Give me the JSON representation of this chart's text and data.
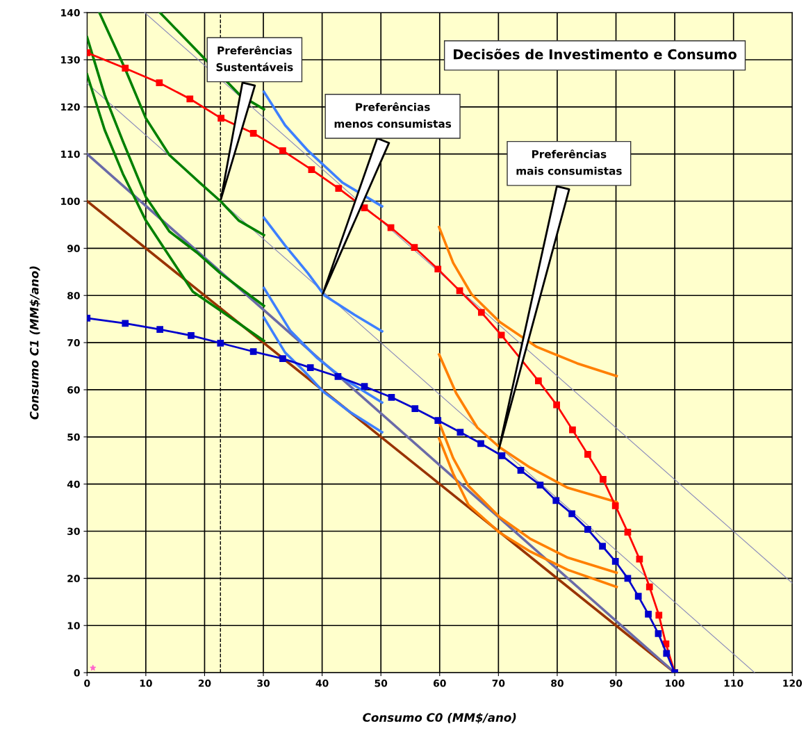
{
  "chart_data": {
    "type": "line",
    "title": "Decisões de Investimento e Consumo",
    "xlabel": "Consumo C0 (MM$/ano)",
    "ylabel": "Consumo C1 (MM$/ano)",
    "xlim": [
      0,
      120
    ],
    "ylim": [
      0,
      140
    ],
    "xticks": [
      0,
      10,
      20,
      30,
      40,
      50,
      60,
      70,
      80,
      90,
      100,
      110,
      120
    ],
    "yticks": [
      0,
      10,
      20,
      30,
      40,
      50,
      60,
      70,
      80,
      90,
      100,
      110,
      120,
      130,
      140
    ],
    "grid": true,
    "line_style": "solid",
    "marker": "none",
    "ref_lines": [
      {
        "axis": "x",
        "value": 22.7,
        "color": "#000000",
        "line_style": "dashed"
      }
    ],
    "annotations": [
      {
        "text": "Preferências\nSustentáveis",
        "x": 22.7,
        "y": 100
      },
      {
        "text": "Preferências\nmenos consumistas",
        "x": 40,
        "y": 80
      },
      {
        "text": "Preferências\nmais consumistas",
        "x": 70,
        "y": 47
      }
    ],
    "series": [
      {
        "color": "#993300",
        "x": [
          0,
          100
        ],
        "values": [
          100,
          0
        ]
      },
      {
        "color": "#6a6aa8",
        "x": [
          0,
          100
        ],
        "values": [
          110,
          0
        ]
      },
      {
        "color": "#8888bb",
        "x": [
          0,
          113.6
        ],
        "values": [
          125,
          0
        ]
      },
      {
        "color": "#8888bb",
        "x": [
          9.8,
          120
        ],
        "values": [
          140,
          19
        ]
      },
      {
        "color": "#008000",
        "x": [
          2.1,
          6.5,
          10,
          14,
          19.2,
          22.7,
          25.8,
          30.1
        ],
        "values": [
          140,
          128,
          117.6,
          109.8,
          103.9,
          100,
          95.9,
          92.8
        ]
      },
      {
        "color": "#008000",
        "x": [
          12.4,
          26,
          30.1
        ],
        "values": [
          140,
          122.5,
          119.5
        ]
      },
      {
        "color": "#008000",
        "x": [
          0,
          3,
          6.1,
          10,
          14,
          18.7,
          22.7,
          30.1
        ],
        "values": [
          134.8,
          122.5,
          112.7,
          100.9,
          93.6,
          89.1,
          84.7,
          77.8
        ]
      },
      {
        "color": "#008000",
        "x": [
          0,
          3,
          6.1,
          10,
          12.8,
          18,
          22.7,
          30.1
        ],
        "values": [
          126.9,
          115.1,
          105.8,
          95.9,
          90.6,
          80.8,
          76.8,
          70.4
        ]
      },
      {
        "color": "#3d7fff",
        "x": [
          30.1,
          33.7,
          37.6,
          43.5,
          50.2
        ],
        "values": [
          123.2,
          116.1,
          110.7,
          103.9,
          98.9
        ]
      },
      {
        "color": "#3d7fff",
        "x": [
          30.1,
          33.7,
          37.6,
          40.4,
          45.5,
          50.2
        ],
        "values": [
          96.5,
          90.6,
          84.7,
          80,
          75.9,
          72.4
        ]
      },
      {
        "color": "#3d7fff",
        "x": [
          30.1,
          34.6,
          39.1,
          43.7,
          50.2
        ],
        "values": [
          81.6,
          72.5,
          66.8,
          62.3,
          57.3
        ]
      },
      {
        "color": "#3d7fff",
        "x": [
          30.1,
          33.7,
          36.9,
          40.1,
          44.6,
          50.2
        ],
        "values": [
          75.3,
          67.9,
          64,
          59.7,
          55.4,
          51
        ]
      },
      {
        "color": "#ff7f00",
        "x": [
          59.9,
          62.3,
          65.4,
          70.2,
          76.5,
          83.4,
          90.1
        ],
        "values": [
          94.5,
          86.9,
          80.3,
          74.4,
          69.1,
          65.6,
          62.9
        ]
      },
      {
        "color": "#ff7f00",
        "x": [
          59.9,
          62.8,
          66.4,
          70.2,
          75.4,
          81.8,
          90.1
        ],
        "values": [
          67.5,
          59.3,
          52,
          47.8,
          43.5,
          39.2,
          36.2
        ]
      },
      {
        "color": "#ff7f00",
        "x": [
          59.9,
          62.3,
          64.9,
          70.2,
          75.4,
          81.8,
          90.1
        ],
        "values": [
          53.1,
          45.5,
          39.6,
          33,
          28.4,
          24.4,
          21.2
        ]
      },
      {
        "color": "#ff7f00",
        "x": [
          59.9,
          62.3,
          64.9,
          70.2,
          75.4,
          81.8,
          90.1
        ],
        "values": [
          49.7,
          42.2,
          35.6,
          29.7,
          25.7,
          21.8,
          18.2
        ]
      },
      {
        "color": "#ff0000",
        "marker": "square",
        "x": [
          0,
          6.5,
          12.3,
          17.5,
          22.8,
          28.3,
          33.3,
          38.2,
          42.8,
          47.2,
          51.7,
          55.7,
          59.7,
          63.4,
          67.1,
          70.5,
          76.8,
          79.9,
          82.6,
          85.2,
          87.8,
          89.9,
          92,
          94,
          95.7,
          97.3,
          98.5,
          100
        ],
        "values": [
          131.5,
          128.2,
          125.1,
          121.7,
          117.6,
          114.4,
          110.7,
          106.7,
          102.7,
          98.6,
          94.4,
          90.2,
          85.6,
          81,
          76.4,
          71.6,
          61.9,
          56.8,
          51.5,
          46.3,
          41,
          35.4,
          29.8,
          24.1,
          18.2,
          12.2,
          6.1,
          0
        ]
      },
      {
        "color": "#0000cc",
        "marker": "square",
        "x": [
          0,
          6.5,
          12.4,
          17.7,
          22.7,
          28.3,
          33.3,
          38,
          42.7,
          47.2,
          51.8,
          55.8,
          59.7,
          63.5,
          67,
          70.6,
          73.8,
          77.1,
          79.8,
          82.5,
          85.2,
          87.7,
          89.9,
          92,
          93.8,
          95.5,
          97.2,
          98.6,
          100
        ],
        "values": [
          75.2,
          74.1,
          72.8,
          71.5,
          69.9,
          68.1,
          66.6,
          64.7,
          62.8,
          60.7,
          58.4,
          56,
          53.5,
          51,
          48.6,
          46,
          42.9,
          39.8,
          36.5,
          33.7,
          30.4,
          26.8,
          23.6,
          20,
          16.2,
          12.4,
          8.3,
          4.1,
          0
        ]
      },
      {
        "type": "scatter",
        "color": "#ff66cc",
        "marker": "star",
        "x": [
          1
        ],
        "values": [
          1
        ]
      }
    ]
  }
}
